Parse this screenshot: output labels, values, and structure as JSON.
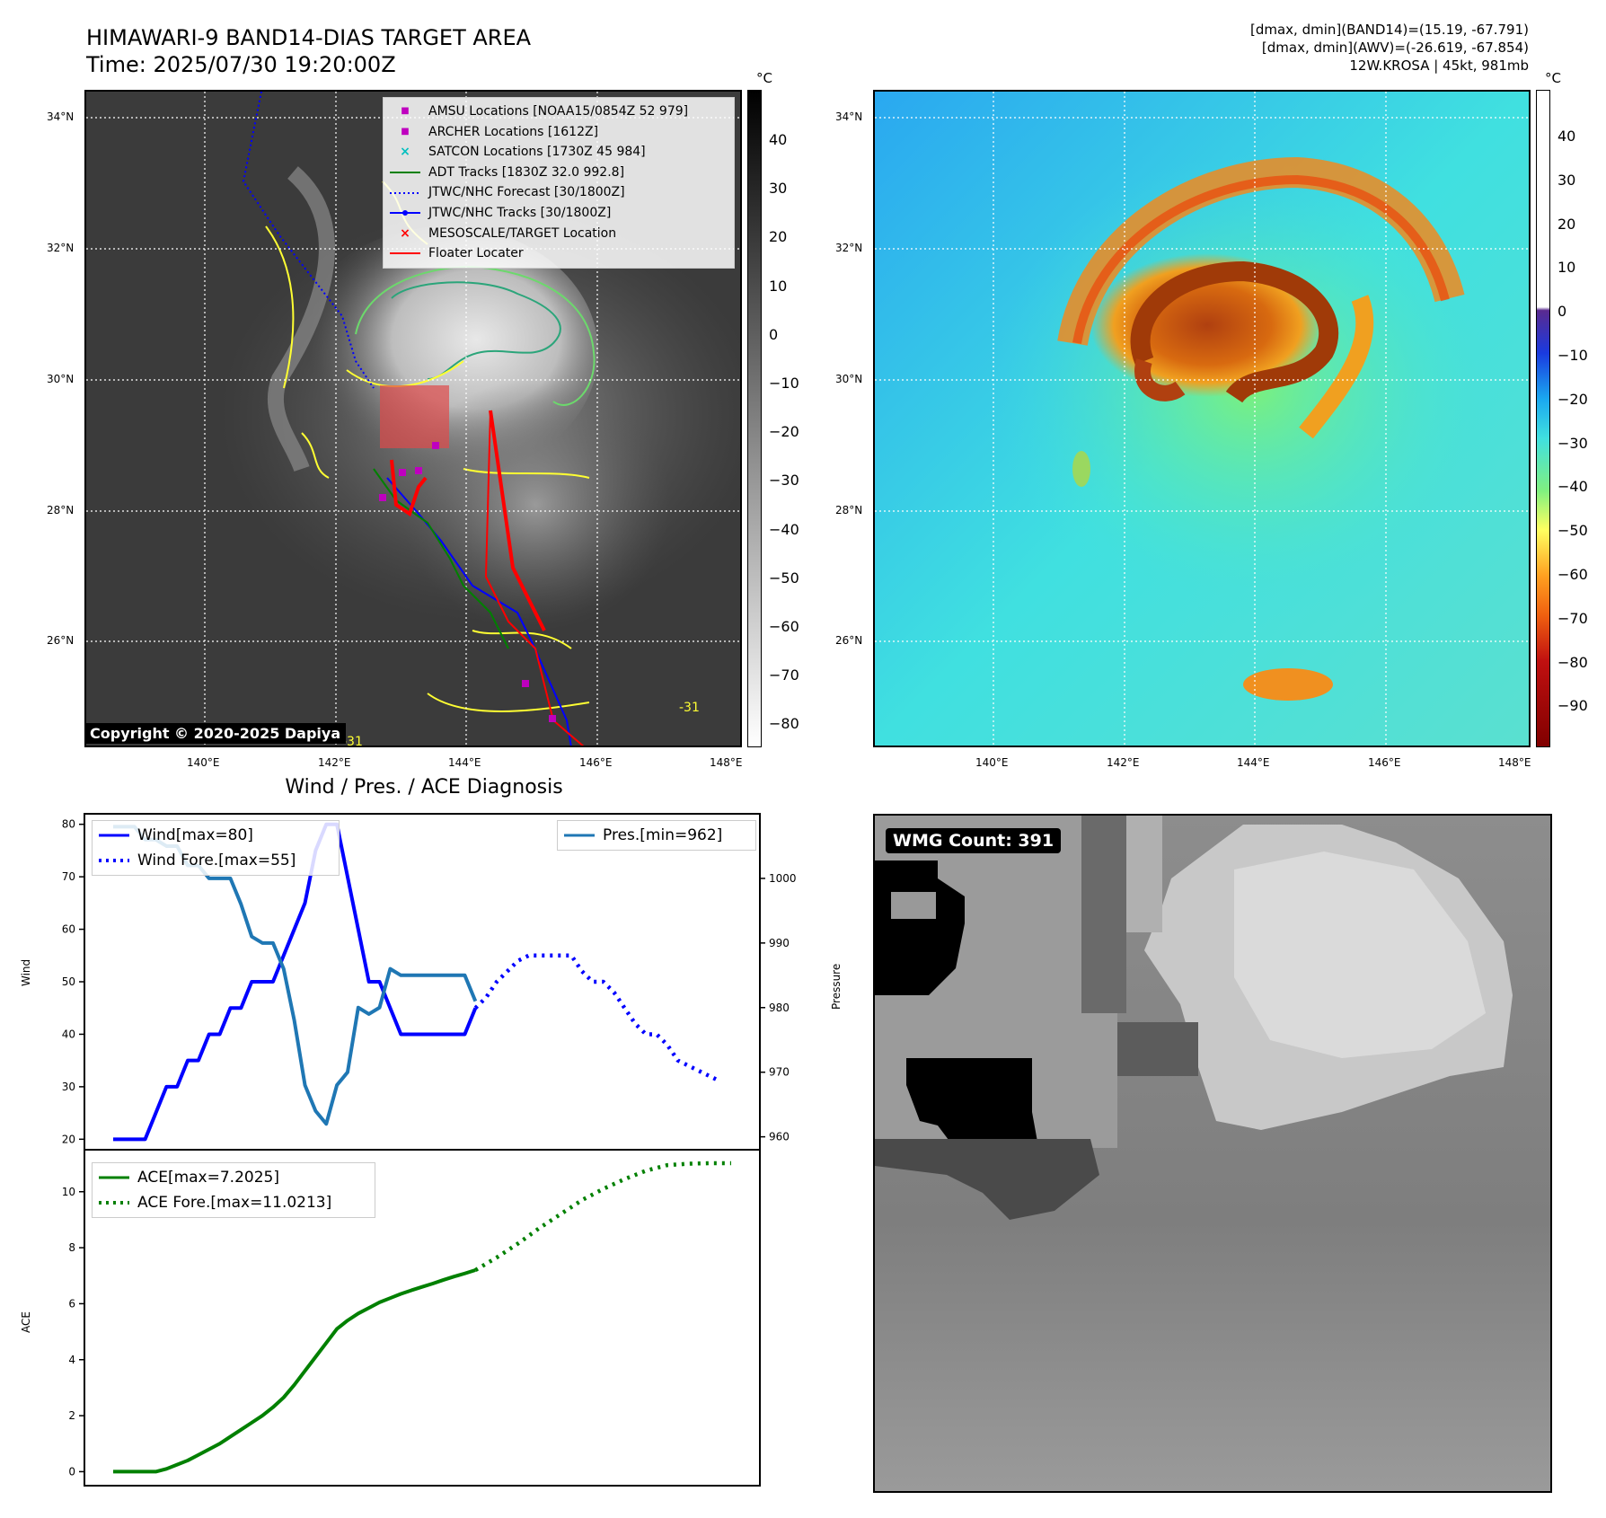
{
  "header": {
    "title_line1": "HIMAWARI-9 BAND14-DIAS TARGET AREA",
    "title_line2": "Time: 2025/07/30 19:20:00Z",
    "info_line1": "[dmax, dmin](BAND14)=(15.19, -67.791)",
    "info_line2": "[dmax, dmin](AWV)=(-26.619, -67.854)",
    "info_line3": "12W.KROSA | 45kt, 981mb"
  },
  "map": {
    "lat_labels": [
      "34°N",
      "32°N",
      "30°N",
      "28°N",
      "26°N"
    ],
    "lon_labels": [
      "140°E",
      "142°E",
      "144°E",
      "146°E",
      "148°E"
    ],
    "copyright": "Copyright © 2020-2025 Dapiya",
    "contour_label": "-31"
  },
  "ir_colorbar": {
    "unit": "°C",
    "ticks": [
      "40",
      "30",
      "20",
      "10",
      "0",
      "−10",
      "−20",
      "−30",
      "−40",
      "−50",
      "−60",
      "−70",
      "−80"
    ]
  },
  "wv_colorbar": {
    "unit": "°C",
    "ticks": [
      "40",
      "30",
      "20",
      "10",
      "0",
      "−10",
      "−20",
      "−30",
      "−40",
      "−50",
      "−60",
      "−70",
      "−80",
      "−90"
    ]
  },
  "legend": [
    {
      "label": "AMSU Locations [NOAA15/0854Z 52 979]",
      "symbol": "■",
      "color": "#bf00bf"
    },
    {
      "label": "ARCHER Locations [1612Z]",
      "symbol": "■",
      "color": "#bf00bf"
    },
    {
      "label": "SATCON Locations [1730Z 45 984]",
      "symbol": "×",
      "color": "#00bfbf"
    },
    {
      "label": "ADT Tracks [1830Z 32.0 992.8]",
      "symbol": "line",
      "color": "#008000"
    },
    {
      "label": "JTWC/NHC Forecast [30/1800Z]",
      "symbol": "dotted",
      "color": "#0000ff"
    },
    {
      "label": "JTWC/NHC Tracks [30/1800Z]",
      "symbol": "dotline",
      "color": "#0000ff"
    },
    {
      "label": "MESOSCALE/TARGET Location",
      "symbol": "×",
      "color": "#ff0000"
    },
    {
      "label": "Floater Locater",
      "symbol": "line",
      "color": "#ff0000"
    }
  ],
  "diagnosis": {
    "title": "Wind / Pres. / ACE Diagnosis",
    "wind_ylabel": "Wind",
    "pres_ylabel": "Pressure",
    "ace_ylabel": "ACE",
    "legend_wind": "Wind[max=80]",
    "legend_wind_fore": "Wind Fore.[max=55]",
    "legend_pres": "Pres.[min=962]",
    "legend_ace": "ACE[max=7.2025]",
    "legend_ace_fore": "ACE Fore.[max=11.0213]"
  },
  "wmg": {
    "label": "WMG Count: 391"
  },
  "colors": {
    "wind": "#0000ff",
    "pressure": "#1f77b4",
    "ace": "#008000",
    "track_red": "#ff0000",
    "track_blue": "#0000ff",
    "track_green": "#008000",
    "coast": "#ffff33"
  },
  "chart_data": [
    {
      "type": "line",
      "title": "Wind / Pres. / ACE Diagnosis",
      "ylabel": "Wind",
      "ylim": [
        18,
        82
      ],
      "xlim": [
        0,
        58
      ],
      "series": [
        {
          "name": "Wind[max=80]",
          "x": [
            0,
            1,
            2,
            3,
            4,
            5,
            6,
            7,
            8,
            9,
            10,
            11,
            12,
            13,
            14,
            15,
            16,
            17,
            18,
            19,
            20,
            21,
            22,
            23,
            24,
            25,
            26,
            27,
            28,
            29,
            30,
            31,
            32,
            33,
            34
          ],
          "values": [
            20,
            20,
            20,
            20,
            25,
            30,
            30,
            35,
            35,
            40,
            40,
            45,
            45,
            50,
            50,
            50,
            55,
            60,
            65,
            75,
            80,
            80,
            70,
            60,
            50,
            50,
            45,
            40,
            40,
            40,
            40,
            40,
            40,
            40,
            45
          ]
        },
        {
          "name": "Wind Fore.[max=55]",
          "x": [
            34,
            35,
            36,
            37,
            38,
            39,
            40,
            41,
            42,
            43,
            44,
            45,
            46,
            47,
            48,
            49,
            50,
            51,
            52,
            53,
            54,
            55,
            56,
            57
          ],
          "values": [
            45,
            47,
            50,
            52,
            54,
            55,
            55,
            55,
            55,
            55,
            52,
            50,
            50,
            48,
            45,
            42,
            40,
            40,
            38,
            35,
            34,
            33,
            32,
            31
          ]
        }
      ]
    },
    {
      "type": "line",
      "ylabel": "Pressure",
      "ylim": [
        958,
        1010
      ],
      "xlim": [
        0,
        58
      ],
      "series": [
        {
          "name": "Pres.[min=962]",
          "x": [
            0,
            1,
            2,
            3,
            4,
            5,
            6,
            7,
            8,
            9,
            10,
            11,
            12,
            13,
            14,
            15,
            16,
            17,
            18,
            19,
            20,
            21,
            22,
            23,
            24,
            25,
            26,
            27,
            28,
            29,
            30,
            31,
            32,
            33,
            34
          ],
          "values": [
            1008,
            1008,
            1008,
            1006,
            1006,
            1005,
            1005,
            1002,
            1002,
            1000,
            1000,
            1000,
            996,
            991,
            990,
            990,
            986,
            978,
            968,
            964,
            962,
            968,
            970,
            980,
            979,
            980,
            986,
            985,
            985,
            985,
            985,
            985,
            985,
            985,
            981
          ]
        }
      ]
    },
    {
      "type": "line",
      "ylabel": "ACE",
      "ylim": [
        -0.5,
        11.5
      ],
      "xlim": [
        0,
        58
      ],
      "series": [
        {
          "name": "ACE[max=7.2025]",
          "x": [
            0,
            1,
            2,
            3,
            4,
            5,
            6,
            7,
            8,
            9,
            10,
            11,
            12,
            13,
            14,
            15,
            16,
            17,
            18,
            19,
            20,
            21,
            22,
            23,
            24,
            25,
            26,
            27,
            28,
            29,
            30,
            31,
            32,
            33,
            34
          ],
          "values": [
            0,
            0,
            0,
            0,
            0,
            0.1,
            0.25,
            0.4,
            0.6,
            0.8,
            1.0,
            1.25,
            1.5,
            1.75,
            2.0,
            2.3,
            2.65,
            3.1,
            3.6,
            4.1,
            4.6,
            5.1,
            5.4,
            5.65,
            5.85,
            6.05,
            6.2,
            6.35,
            6.48,
            6.6,
            6.72,
            6.85,
            6.97,
            7.08,
            7.2
          ]
        },
        {
          "name": "ACE Fore.[max=11.0213]",
          "x": [
            34,
            36,
            38,
            40,
            42,
            44,
            46,
            48,
            50,
            52,
            54,
            56,
            58
          ],
          "values": [
            7.2,
            7.65,
            8.15,
            8.7,
            9.2,
            9.7,
            10.1,
            10.45,
            10.75,
            10.95,
            11.0,
            11.02,
            11.02
          ]
        }
      ]
    }
  ]
}
